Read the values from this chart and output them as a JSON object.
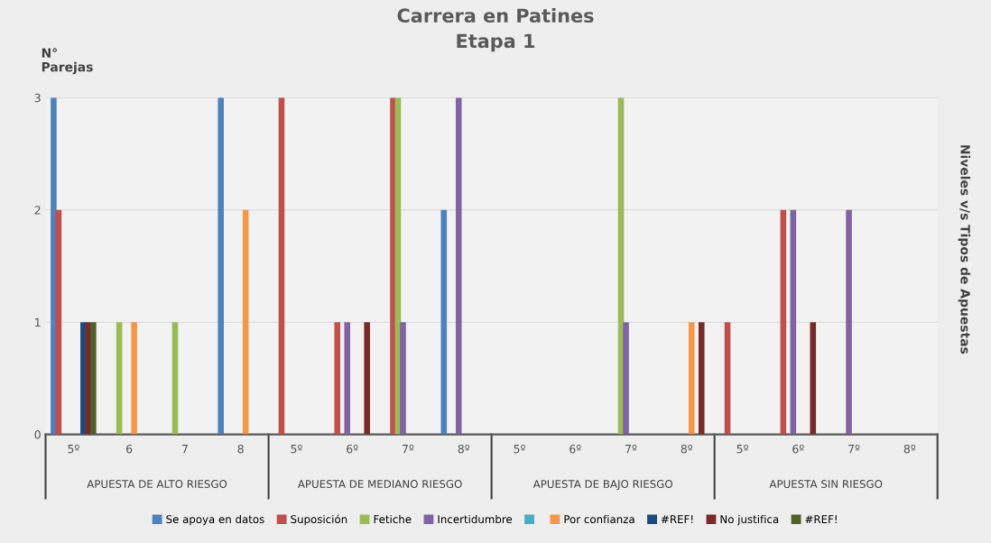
{
  "chart_data": {
    "type": "bar",
    "title": "Carrera en Patines\nEtapa 1",
    "ylabel": "N°\nParejas",
    "y2label": "Niveles v/s Tipos de Apuestas",
    "categories": [
      "5º",
      "6",
      "7",
      "8",
      "5º",
      "6º",
      "7º",
      "8º",
      "5º",
      "6º",
      "7º",
      "8º",
      "5º",
      "6º",
      "7º",
      "8º"
    ],
    "annotations": [
      "APUESTA DE ALTO RIESGO",
      "APUESTA DE MEDIANO RIESGO",
      "APUESTA DE BAJO RIESGO",
      "APUESTA SIN RIESGO"
    ],
    "ylim": [
      0,
      3
    ],
    "yticks": [
      0,
      1,
      2,
      3
    ],
    "grid": "y",
    "legend": "bottom",
    "series": [
      {
        "name": "Se apoya en datos",
        "color": "#4f81bd",
        "values": [
          3,
          null,
          null,
          3,
          null,
          null,
          null,
          2,
          null,
          null,
          null,
          null,
          null,
          null,
          null,
          null
        ]
      },
      {
        "name": "Suposición",
        "color": "#c0504d",
        "values": [
          2,
          null,
          null,
          null,
          3,
          1,
          3,
          null,
          null,
          null,
          null,
          null,
          1,
          2,
          null,
          null
        ]
      },
      {
        "name": "Fetiche",
        "color": "#9bbb59",
        "values": [
          null,
          1,
          1,
          null,
          null,
          null,
          3,
          null,
          null,
          null,
          3,
          null,
          null,
          null,
          null,
          null
        ]
      },
      {
        "name": "Incertidumbre",
        "color": "#8064a2",
        "values": [
          null,
          null,
          null,
          null,
          null,
          1,
          1,
          3,
          null,
          null,
          1,
          null,
          null,
          2,
          2,
          null
        ]
      },
      {
        "color": "#4bacc6",
        "values": [
          null,
          null,
          null,
          null,
          null,
          null,
          null,
          null,
          null,
          null,
          null,
          null,
          null,
          null,
          null,
          null
        ]
      },
      {
        "name": "Por confianza",
        "color": "#f79646",
        "values": [
          null,
          1,
          null,
          2,
          null,
          null,
          null,
          null,
          null,
          null,
          null,
          1,
          null,
          null,
          null,
          null
        ]
      },
      {
        "name": "#REF!",
        "color": "#1f497d",
        "values": [
          1,
          null,
          null,
          null,
          null,
          null,
          null,
          null,
          null,
          null,
          null,
          null,
          null,
          null,
          null,
          null
        ]
      },
      {
        "name": "No justifica",
        "color": "#772c2a",
        "values": [
          1,
          null,
          null,
          null,
          null,
          1,
          null,
          null,
          null,
          null,
          null,
          1,
          null,
          1,
          null,
          null
        ]
      },
      {
        "name": "#REF!",
        "color": "#4f6228",
        "values": [
          1,
          null,
          null,
          null,
          null,
          null,
          null,
          null,
          null,
          null,
          null,
          null,
          null,
          null,
          null,
          null
        ]
      }
    ]
  }
}
